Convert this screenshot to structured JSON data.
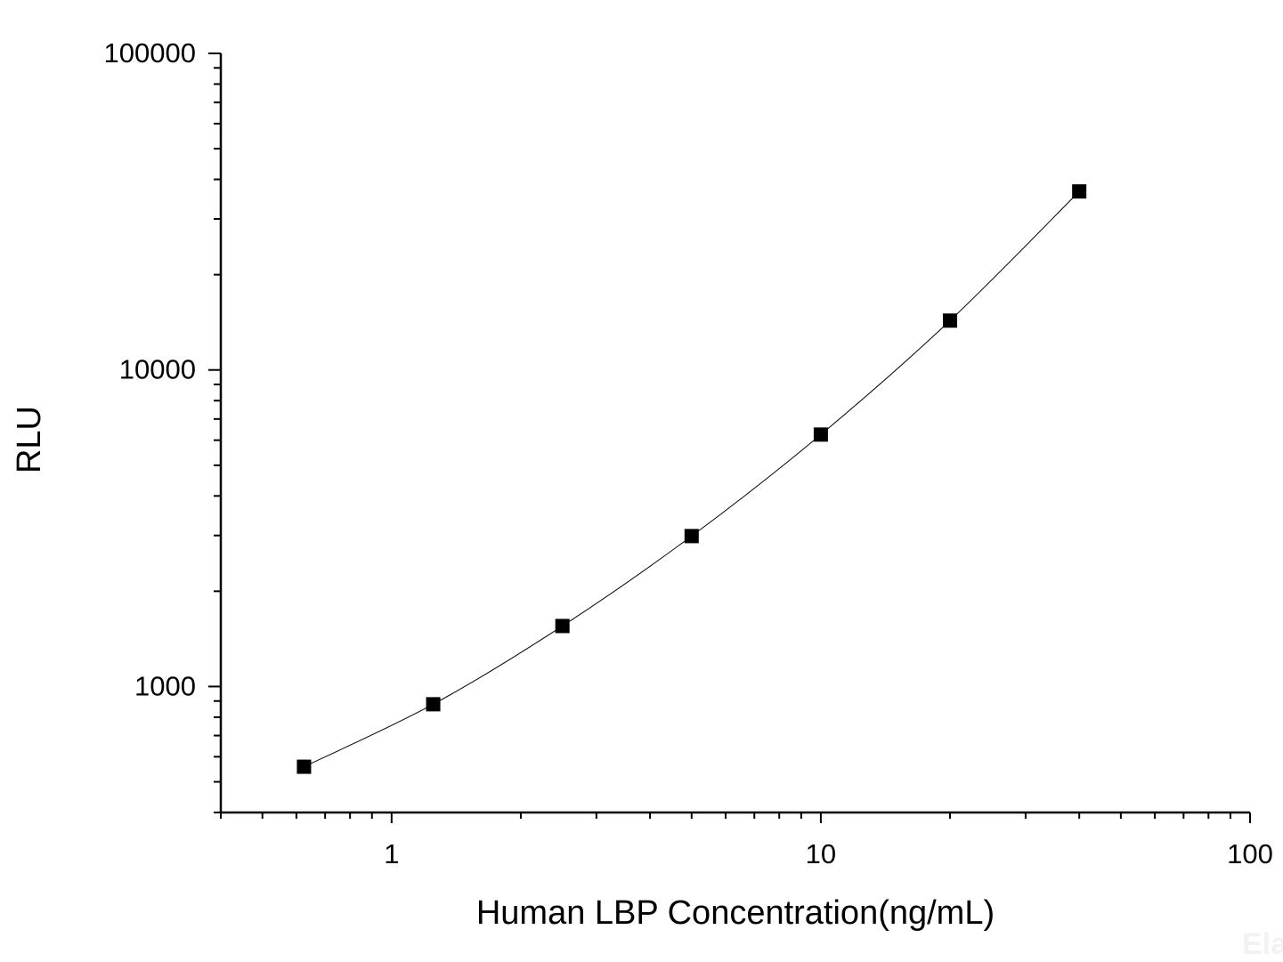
{
  "chart_data": {
    "type": "line",
    "title": "",
    "xlabel": "Human LBP Concentration(ng/mL)",
    "ylabel": "RLU",
    "xscale": "log",
    "yscale": "log",
    "xlim": [
      0.4,
      100
    ],
    "ylim": [
      400,
      100000
    ],
    "xticks": [
      1,
      10,
      100
    ],
    "xtick_labels": [
      "1",
      "10",
      "100"
    ],
    "yticks": [
      1000,
      10000,
      100000
    ],
    "ytick_labels": [
      "1000",
      "10000",
      "100000"
    ],
    "grid": false,
    "legend": "none",
    "marker": "square",
    "color": "#000000",
    "series": [
      {
        "x": [
          0.625,
          1.25,
          2.5,
          5,
          10,
          20,
          40
        ],
        "y": [
          558,
          879,
          1553,
          2987,
          6250,
          14320,
          36640
        ]
      }
    ],
    "watermark": "Ela"
  }
}
